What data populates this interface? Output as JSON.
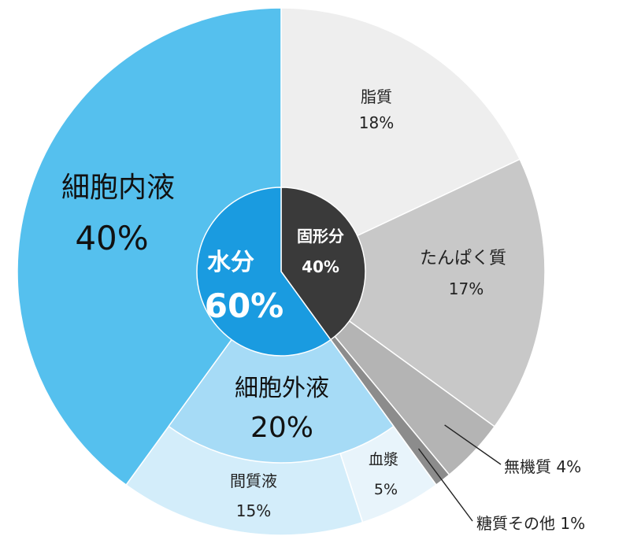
{
  "chart_data": {
    "type": "pie",
    "outer_ring": [
      {
        "name": "脂質",
        "value": 18,
        "label": "18%",
        "color": "#eeeeee"
      },
      {
        "name": "たんぱく質",
        "value": 17,
        "label": "17%",
        "color": "#c8c8c8"
      },
      {
        "name": "無機質",
        "value": 4,
        "label": "無機質 4%",
        "color": "#b4b4b4"
      },
      {
        "name": "糖質その他",
        "value": 1,
        "label": "糖質その他 1%",
        "color": "#8c8c8c"
      },
      {
        "name": "血漿",
        "value": 5,
        "label": "5%",
        "color": "#e8f4fb"
      },
      {
        "name": "間質液",
        "value": 15,
        "label": "15%",
        "color": "#d3edfa"
      },
      {
        "name": "細胞内液",
        "value": 40,
        "label": "40%",
        "color": "#55c0ee"
      }
    ],
    "middle_ring": [
      {
        "name": "細胞外液",
        "value": 20,
        "label": "20%",
        "color": "#a6dbf6"
      }
    ],
    "inner_ring": [
      {
        "name": "固形分",
        "value": 40,
        "label": "40%",
        "color": "#3a3a3a"
      },
      {
        "name": "水分",
        "value": 60,
        "label": "60%",
        "color": "#1a9be0"
      }
    ]
  }
}
